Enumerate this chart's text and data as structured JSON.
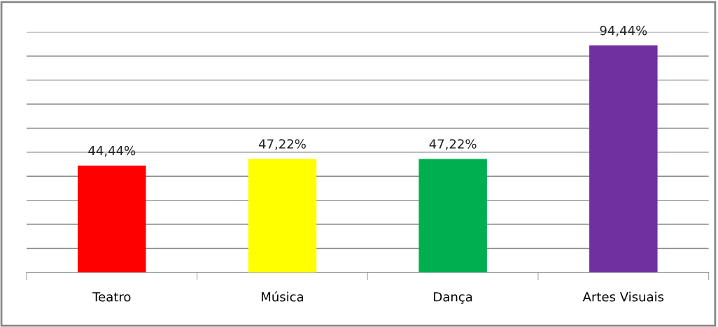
{
  "chart_data": {
    "type": "bar",
    "categories": [
      "Teatro",
      "Música",
      "Dança",
      "Artes Visuais"
    ],
    "values": [
      44.44,
      47.22,
      47.22,
      94.44
    ],
    "colors": [
      "#ff0000",
      "#ffff00",
      "#00b050",
      "#7030a0"
    ],
    "value_labels": [
      "44,44%",
      "47,22%",
      "47,22%",
      "94,44%"
    ],
    "ylim": [
      0,
      100
    ],
    "yticks": [
      {
        "value": 0,
        "label": null
      },
      {
        "value": 10,
        "label": null
      },
      {
        "value": 20,
        "label": null
      },
      {
        "value": 30,
        "label": null
      },
      {
        "value": 40,
        "label": null
      },
      {
        "value": 50,
        "label": null
      },
      {
        "value": 60,
        "label": null
      },
      {
        "value": 70,
        "label": null
      },
      {
        "value": 80,
        "label": null
      },
      {
        "value": 90,
        "label": null
      },
      {
        "value": 100,
        "label": null
      }
    ],
    "grid": "y",
    "tick_labels": "x",
    "legend": false
  }
}
